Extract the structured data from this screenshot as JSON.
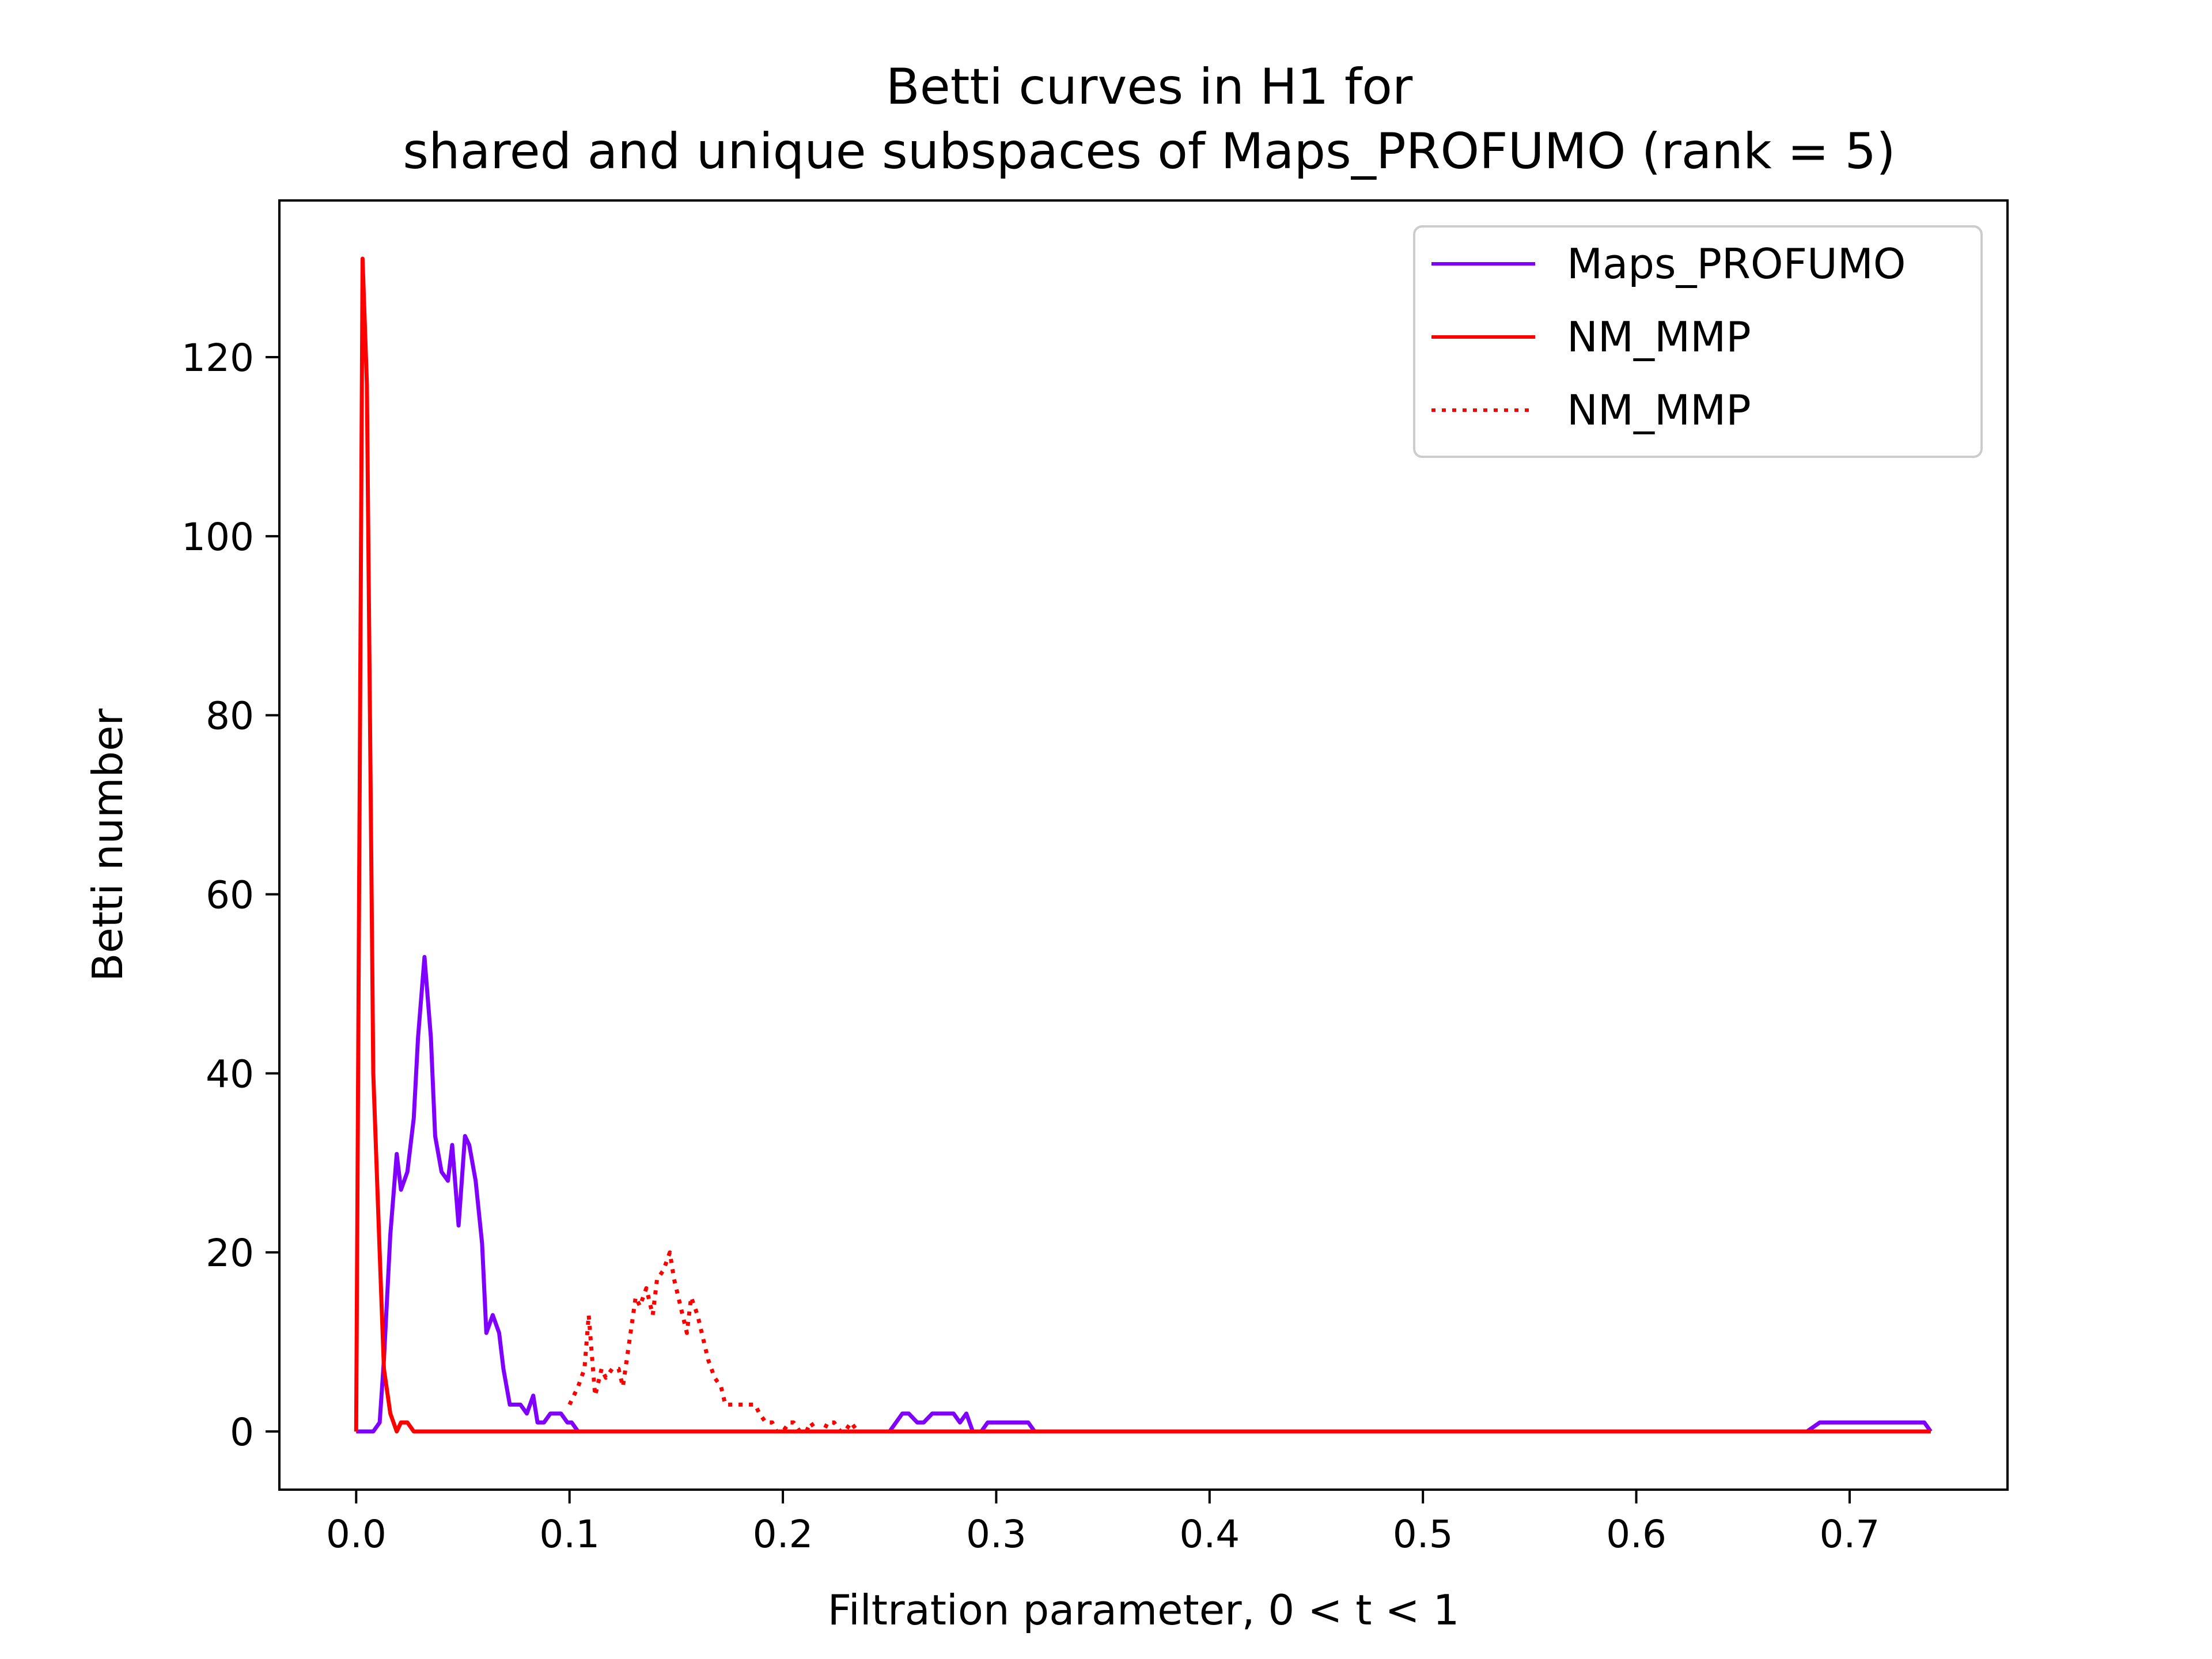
{
  "chart_data": {
    "type": "line",
    "title": [
      "Betti curves in H1 for",
      "shared and unique subspaces of Maps_PROFUMO (rank = 5)"
    ],
    "xlabel": "Filtration parameter, 0 < t < 1",
    "ylabel": "Betti number",
    "xlim": [
      -0.036,
      0.774
    ],
    "ylim": [
      -6.5,
      137.5
    ],
    "xticks": [
      0.0,
      0.1,
      0.2,
      0.3,
      0.4,
      0.5,
      0.6,
      0.7
    ],
    "xtick_labels": [
      "0.0",
      "0.1",
      "0.2",
      "0.3",
      "0.4",
      "0.5",
      "0.6",
      "0.7"
    ],
    "yticks": [
      0,
      20,
      40,
      60,
      80,
      100,
      120
    ],
    "ytick_labels": [
      "0",
      "20",
      "40",
      "60",
      "80",
      "100",
      "120"
    ],
    "grid": false,
    "legend_position": "top-right",
    "series": [
      {
        "name": "Maps_PROFUMO",
        "color": "#8000ff",
        "style": "solid",
        "x": [
          0.0,
          0.008,
          0.011,
          0.013,
          0.016,
          0.019,
          0.021,
          0.024,
          0.027,
          0.029,
          0.032,
          0.035,
          0.037,
          0.04,
          0.043,
          0.045,
          0.048,
          0.051,
          0.053,
          0.056,
          0.059,
          0.061,
          0.064,
          0.067,
          0.069,
          0.072,
          0.075,
          0.077,
          0.08,
          0.083,
          0.085,
          0.088,
          0.091,
          0.093,
          0.096,
          0.099,
          0.101,
          0.104,
          0.107,
          0.109,
          0.112,
          0.115,
          0.117,
          0.25,
          0.256,
          0.259,
          0.263,
          0.266,
          0.27,
          0.275,
          0.28,
          0.283,
          0.286,
          0.289,
          0.293,
          0.296,
          0.3,
          0.31,
          0.315,
          0.318,
          0.68,
          0.686,
          0.735,
          0.738
        ],
        "y": [
          0,
          0,
          1,
          8,
          22,
          31,
          27,
          29,
          35,
          44,
          53,
          44,
          33,
          29,
          28,
          32,
          23,
          33,
          32,
          28,
          21,
          11,
          13,
          11,
          7,
          3,
          3,
          3,
          2,
          4,
          1,
          1,
          2,
          2,
          2,
          1,
          1,
          0,
          0,
          0,
          0,
          0,
          0,
          0,
          2,
          2,
          1,
          1,
          2,
          2,
          2,
          1,
          2,
          0,
          0,
          1,
          1,
          1,
          1,
          0,
          0,
          1,
          1,
          0
        ]
      },
      {
        "name": "NM_MMP",
        "color": "#ff0000",
        "style": "solid",
        "x": [
          0.0,
          0.003,
          0.005,
          0.008,
          0.011,
          0.013,
          0.016,
          0.019,
          0.021,
          0.024,
          0.027,
          0.029,
          0.032,
          0.035,
          0.738
        ],
        "y": [
          0,
          131,
          117,
          40,
          20,
          7,
          2,
          0,
          1,
          1,
          0,
          0,
          0,
          0,
          0
        ]
      },
      {
        "name": "NM_MMP",
        "color": "#ff0000",
        "style": "dotted",
        "x": [
          0.1,
          0.104,
          0.107,
          0.109,
          0.112,
          0.115,
          0.117,
          0.12,
          0.123,
          0.125,
          0.128,
          0.131,
          0.133,
          0.136,
          0.139,
          0.141,
          0.144,
          0.147,
          0.149,
          0.152,
          0.155,
          0.157,
          0.16,
          0.163,
          0.165,
          0.168,
          0.171,
          0.173,
          0.176,
          0.179,
          0.181,
          0.184,
          0.187,
          0.189,
          0.192,
          0.195,
          0.197,
          0.2,
          0.203,
          0.205,
          0.208,
          0.211,
          0.213,
          0.216,
          0.219,
          0.221,
          0.224,
          0.227,
          0.229,
          0.232,
          0.235,
          0.24,
          0.738
        ],
        "y": [
          3,
          5,
          7,
          13,
          4,
          7,
          6,
          7,
          7,
          5,
          10,
          15,
          14,
          16,
          13,
          17,
          18,
          20,
          17,
          14,
          11,
          15,
          13,
          10,
          8,
          6,
          5,
          3,
          3,
          3,
          3,
          3,
          3,
          2,
          1,
          1,
          0,
          0,
          1,
          1,
          0,
          0,
          1,
          0,
          0,
          1,
          1,
          0,
          0,
          1,
          0,
          0,
          0
        ]
      }
    ]
  }
}
